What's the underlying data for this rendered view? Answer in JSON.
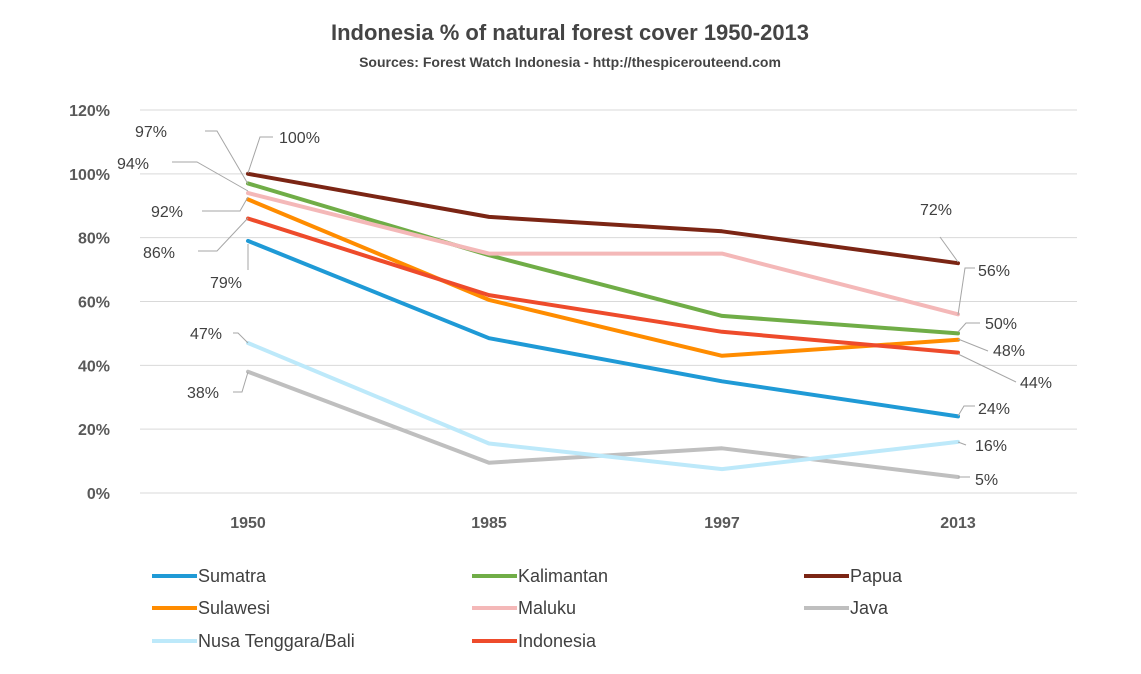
{
  "chart_data": {
    "type": "line",
    "title": "Indonesia % of natural forest cover 1950-2013",
    "subtitle": "Sources: Forest Watch Indonesia - http://thespicerouteend.com",
    "xlabel": "",
    "ylabel": "",
    "categories": [
      "1950",
      "1985",
      "1997",
      "2013"
    ],
    "ylim": [
      0,
      120
    ],
    "y_ticks": [
      0,
      20,
      40,
      60,
      80,
      100,
      120
    ],
    "y_tick_labels": [
      "0%",
      "20%",
      "40%",
      "60%",
      "80%",
      "100%",
      "120%"
    ],
    "grid": true,
    "legend_position": "bottom",
    "series": [
      {
        "name": "Sumatra",
        "color": "#1f9ad6",
        "values": [
          79,
          48.5,
          35,
          24
        ],
        "labels": [
          "79%",
          "",
          "",
          "24%"
        ]
      },
      {
        "name": "Kalimantan",
        "color": "#70ad47",
        "values": [
          97,
          74.5,
          55.5,
          50
        ],
        "labels": [
          "97%",
          "",
          "",
          "50%"
        ]
      },
      {
        "name": "Papua",
        "color": "#7b2514",
        "values": [
          100,
          86.5,
          82,
          72
        ],
        "labels": [
          "100%",
          "",
          "",
          "72%"
        ]
      },
      {
        "name": "Sulawesi",
        "color": "#ff8c00",
        "values": [
          92,
          60.5,
          43,
          48
        ],
        "labels": [
          "92%",
          "",
          "",
          "48%"
        ]
      },
      {
        "name": "Maluku",
        "color": "#f4b8b8",
        "values": [
          94,
          75,
          75,
          56
        ],
        "labels": [
          "94%",
          "",
          "",
          "56%"
        ]
      },
      {
        "name": "Java",
        "color": "#bfbfbf",
        "values": [
          38,
          9.5,
          14,
          5
        ],
        "labels": [
          "38%",
          "",
          "",
          "5%"
        ]
      },
      {
        "name": "Nusa Tenggara/Bali",
        "color": "#bde9fa",
        "values": [
          47,
          15.5,
          7.5,
          16
        ],
        "labels": [
          "47%",
          "",
          "",
          "16%"
        ]
      },
      {
        "name": "Indonesia",
        "color": "#ee4b2b",
        "values": [
          86,
          62,
          50.5,
          44
        ],
        "labels": [
          "86%",
          "",
          "",
          "44%"
        ]
      }
    ]
  }
}
